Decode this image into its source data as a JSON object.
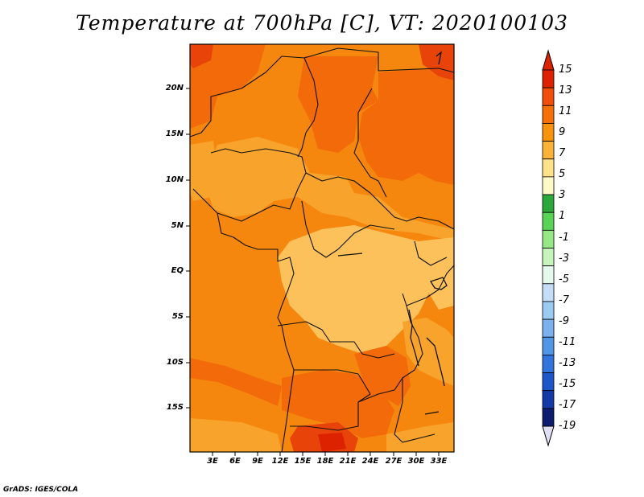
{
  "title": "Temperature at 700hPa [C], VT: 2020100103",
  "credit": "GrADS: IGES/COLA",
  "map": {
    "lat_ticks": [
      "20N",
      "15N",
      "10N",
      "5N",
      "EQ",
      "5S",
      "10S",
      "15S"
    ],
    "lon_ticks": [
      "3E",
      "6E",
      "9E",
      "12E",
      "15E",
      "18E",
      "21E",
      "24E",
      "27E",
      "30E",
      "33E"
    ]
  },
  "colorbar": {
    "labels": [
      "15",
      "13",
      "11",
      "9",
      "7",
      "5",
      "3",
      "1",
      "-1",
      "-3",
      "-5",
      "-7",
      "-9",
      "-11",
      "-13",
      "-15",
      "-17",
      "-19"
    ],
    "colors": [
      "#dd2200",
      "#f04e0a",
      "#f57008",
      "#f7930d",
      "#fbb238",
      "#fde28a",
      "#fff8c8",
      "#2ca83a",
      "#59d355",
      "#95e885",
      "#c7f4bd",
      "#e6f9ee",
      "#c3def6",
      "#9bcbf3",
      "#7ab1ee",
      "#5097e8",
      "#3274dd",
      "#1e56c9",
      "#133aa8",
      "#0b1d6e"
    ],
    "top_color": "#dd2200",
    "bottom_color": "#e0e0f5"
  },
  "palette": {
    "darkest": "#e8440a",
    "dark": "#f26a0a",
    "mid": "#f5870e",
    "light": "#f8a32c",
    "lightest": "#fcc15a"
  }
}
